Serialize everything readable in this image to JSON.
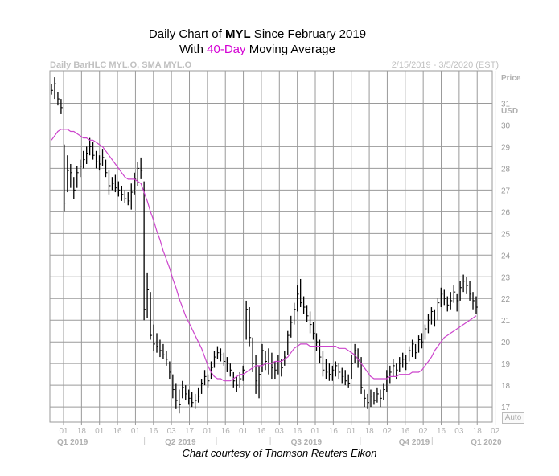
{
  "title": {
    "line1_prefix": "Daily Chart of ",
    "line1_ticker": "MYL",
    "line1_suffix": " Since February 2019",
    "line2_prefix": "With ",
    "line2_highlight": "40-Day",
    "line2_suffix": " Moving Average",
    "highlight_color": "#d400d4"
  },
  "header": {
    "left": "Daily BarHLC MYL.O, SMA MYL.O",
    "right": "2/15/2019 - 3/5/2020 (EST)"
  },
  "axis": {
    "price_label": "Price",
    "currency_label": "USD",
    "auto_label": "Auto"
  },
  "credit": "Chart courtesy of Thomson Reuters Eikon",
  "colors": {
    "grid": "#9a9a9a",
    "bars": "#000000",
    "sma": "#cc44cc",
    "axis_text": "#b0b0b0"
  },
  "chart_data": {
    "type": "line",
    "ylim": [
      16.3,
      32.5
    ],
    "yticks": [
      17,
      18,
      19,
      20,
      21,
      22,
      23,
      24,
      25,
      26,
      27,
      28,
      29,
      30,
      31
    ],
    "x_tick_labels": [
      "01",
      "18",
      "01",
      "16",
      "01",
      "16",
      "03",
      "17",
      "01",
      "16",
      "01",
      "16",
      "03",
      "16",
      "01",
      "16",
      "01",
      "18",
      "02",
      "16",
      "02",
      "16",
      "03",
      "18",
      "02"
    ],
    "quarter_labels": [
      "Q1 2019",
      "Q2 2019",
      "Q3 2019",
      "Q4 2019",
      "Q1 2020"
    ],
    "series": [
      {
        "name": "MYL.O",
        "style": "bar_hlc",
        "values": [
          [
            31.9,
            31.4,
            31.6
          ],
          [
            32.2,
            31.2,
            31.9
          ],
          [
            31.5,
            30.9,
            31.2
          ],
          [
            31.2,
            30.5,
            30.8
          ],
          [
            29.1,
            26.0,
            26.4
          ],
          [
            28.6,
            26.9,
            27.9
          ],
          [
            28.2,
            27.1,
            27.8
          ],
          [
            27.6,
            26.6,
            27.0
          ],
          [
            28.1,
            27.1,
            27.8
          ],
          [
            28.4,
            27.6,
            28.1
          ],
          [
            28.8,
            28.0,
            28.4
          ],
          [
            29.0,
            28.2,
            28.7
          ],
          [
            29.4,
            28.6,
            29.0
          ],
          [
            29.2,
            28.4,
            28.6
          ],
          [
            28.8,
            28.0,
            28.3
          ],
          [
            28.6,
            27.9,
            28.2
          ],
          [
            28.9,
            28.1,
            28.5
          ],
          [
            28.4,
            27.6,
            27.8
          ],
          [
            27.9,
            26.8,
            27.2
          ],
          [
            27.6,
            27.0,
            27.3
          ],
          [
            27.7,
            26.9,
            27.1
          ],
          [
            27.4,
            26.7,
            27.0
          ],
          [
            27.2,
            26.5,
            26.8
          ],
          [
            27.0,
            26.4,
            26.6
          ],
          [
            26.9,
            26.3,
            26.5
          ],
          [
            27.3,
            26.1,
            26.9
          ],
          [
            27.8,
            26.8,
            27.5
          ],
          [
            28.3,
            27.2,
            28.0
          ],
          [
            28.5,
            27.5,
            27.9
          ],
          [
            27.4,
            21.0,
            21.5
          ],
          [
            23.2,
            21.1,
            22.4
          ],
          [
            22.3,
            20.1,
            20.3
          ],
          [
            20.8,
            19.6,
            19.9
          ],
          [
            20.4,
            19.5,
            19.8
          ],
          [
            20.1,
            19.3,
            19.6
          ],
          [
            19.9,
            19.2,
            19.4
          ],
          [
            19.6,
            18.9,
            19.2
          ],
          [
            19.1,
            18.3,
            18.6
          ],
          [
            18.5,
            17.4,
            17.8
          ],
          [
            18.1,
            16.9,
            17.3
          ],
          [
            17.8,
            16.7,
            17.1
          ],
          [
            18.2,
            17.4,
            17.9
          ],
          [
            18.0,
            17.3,
            17.6
          ],
          [
            17.8,
            17.1,
            17.4
          ],
          [
            17.7,
            17.0,
            17.2
          ],
          [
            17.6,
            16.9,
            17.3
          ],
          [
            17.9,
            17.2,
            17.5
          ],
          [
            18.3,
            17.6,
            18.1
          ],
          [
            18.7,
            18.0,
            18.4
          ],
          [
            18.5,
            17.9,
            18.2
          ],
          [
            19.1,
            18.3,
            18.8
          ],
          [
            19.6,
            18.8,
            19.3
          ],
          [
            19.8,
            19.2,
            19.5
          ],
          [
            19.7,
            19.1,
            19.4
          ],
          [
            19.5,
            18.9,
            19.1
          ],
          [
            19.3,
            18.6,
            19.0
          ],
          [
            19.0,
            18.4,
            18.7
          ],
          [
            18.6,
            17.9,
            18.2
          ],
          [
            18.4,
            17.7,
            18.0
          ],
          [
            18.6,
            17.9,
            18.3
          ],
          [
            18.9,
            18.2,
            18.7
          ],
          [
            21.9,
            20.1,
            21.5
          ],
          [
            21.6,
            19.8,
            20.2
          ],
          [
            20.2,
            18.6,
            19.0
          ],
          [
            19.4,
            17.6,
            18.2
          ],
          [
            18.9,
            17.4,
            18.5
          ],
          [
            19.9,
            18.6,
            19.6
          ],
          [
            19.6,
            18.7,
            19.1
          ],
          [
            19.7,
            18.5,
            19.0
          ],
          [
            19.5,
            18.3,
            18.8
          ],
          [
            19.1,
            18.3,
            18.7
          ],
          [
            19.4,
            18.5,
            19.1
          ],
          [
            19.2,
            18.4,
            18.8
          ],
          [
            19.6,
            18.9,
            19.3
          ],
          [
            20.5,
            19.4,
            20.3
          ],
          [
            21.2,
            20.2,
            20.9
          ],
          [
            21.8,
            20.8,
            21.5
          ],
          [
            22.6,
            21.4,
            22.2
          ],
          [
            22.9,
            21.6,
            21.8
          ],
          [
            22.1,
            21.3,
            21.6
          ],
          [
            21.7,
            20.9,
            21.2
          ],
          [
            21.4,
            20.4,
            20.8
          ],
          [
            20.9,
            20.1,
            20.4
          ],
          [
            20.4,
            19.6,
            20.0
          ],
          [
            20.1,
            19.0,
            19.3
          ],
          [
            19.6,
            18.4,
            18.7
          ],
          [
            19.2,
            18.3,
            18.6
          ],
          [
            19.0,
            18.2,
            18.5
          ],
          [
            18.9,
            18.2,
            18.7
          ],
          [
            19.1,
            18.4,
            18.9
          ],
          [
            19.0,
            18.3,
            18.6
          ],
          [
            18.8,
            18.1,
            18.4
          ],
          [
            18.7,
            18.0,
            18.2
          ],
          [
            18.5,
            17.9,
            18.1
          ],
          [
            19.4,
            18.3,
            19.0
          ],
          [
            19.9,
            19.0,
            19.6
          ],
          [
            19.7,
            18.8,
            19.2
          ],
          [
            19.3,
            17.6,
            17.9
          ],
          [
            17.8,
            17.0,
            17.4
          ],
          [
            17.6,
            16.9,
            17.2
          ],
          [
            17.8,
            17.0,
            17.5
          ],
          [
            17.7,
            17.1,
            17.3
          ],
          [
            17.9,
            17.2,
            17.6
          ],
          [
            17.8,
            17.0,
            17.4
          ],
          [
            18.1,
            17.3,
            17.8
          ],
          [
            18.7,
            17.7,
            18.4
          ],
          [
            18.9,
            18.1,
            18.6
          ],
          [
            19.2,
            18.4,
            18.9
          ],
          [
            19.0,
            18.3,
            18.7
          ],
          [
            19.3,
            18.6,
            19.0
          ],
          [
            19.5,
            18.8,
            19.2
          ],
          [
            19.4,
            18.7,
            19.0
          ],
          [
            19.8,
            19.1,
            19.6
          ],
          [
            20.1,
            19.3,
            19.9
          ],
          [
            19.9,
            19.2,
            19.5
          ],
          [
            20.3,
            19.5,
            20.1
          ],
          [
            20.4,
            19.7,
            20.0
          ],
          [
            20.8,
            20.1,
            20.6
          ],
          [
            21.3,
            20.4,
            21.0
          ],
          [
            21.6,
            20.8,
            21.4
          ],
          [
            21.5,
            20.7,
            21.1
          ],
          [
            22.0,
            21.0,
            21.8
          ],
          [
            22.5,
            21.6,
            22.2
          ],
          [
            22.4,
            21.7,
            22.0
          ],
          [
            22.1,
            21.4,
            21.7
          ],
          [
            22.3,
            21.5,
            21.9
          ],
          [
            22.6,
            21.8,
            22.3
          ],
          [
            22.2,
            21.4,
            21.9
          ],
          [
            22.8,
            21.9,
            22.5
          ],
          [
            23.1,
            22.3,
            22.8
          ],
          [
            23.0,
            22.2,
            22.6
          ],
          [
            22.8,
            21.9,
            22.2
          ],
          [
            22.3,
            21.5,
            21.9
          ],
          [
            22.1,
            21.3,
            21.6
          ]
        ]
      },
      {
        "name": "SMA MYL.O",
        "values": [
          29.3,
          29.5,
          29.7,
          29.8,
          29.8,
          29.8,
          29.7,
          29.7,
          29.6,
          29.5,
          29.4,
          29.4,
          29.3,
          29.3,
          29.2,
          29.1,
          29.0,
          28.8,
          28.6,
          28.4,
          28.2,
          28.0,
          27.8,
          27.6,
          27.5,
          27.5,
          27.5,
          27.4,
          27.3,
          26.9,
          26.5,
          26.0,
          25.6,
          25.1,
          24.7,
          24.2,
          23.8,
          23.4,
          22.9,
          22.5,
          22.0,
          21.6,
          21.2,
          20.9,
          20.6,
          20.3,
          20.0,
          19.7,
          19.3,
          18.9,
          18.6,
          18.4,
          18.3,
          18.3,
          18.2,
          18.2,
          18.2,
          18.3,
          18.4,
          18.5,
          18.5,
          18.6,
          18.7,
          18.8,
          18.9,
          18.9,
          18.9,
          19.0,
          19.0,
          19.0,
          19.1,
          19.1,
          19.1,
          19.2,
          19.3,
          19.5,
          19.7,
          19.8,
          19.9,
          19.9,
          19.9,
          19.8,
          19.8,
          19.8,
          19.8,
          19.8,
          19.8,
          19.8,
          19.8,
          19.8,
          19.7,
          19.7,
          19.7,
          19.6,
          19.5,
          19.4,
          19.2,
          19.0,
          18.8,
          18.6,
          18.4,
          18.3,
          18.3,
          18.3,
          18.3,
          18.3,
          18.4,
          18.4,
          18.4,
          18.5,
          18.5,
          18.5,
          18.5,
          18.6,
          18.6,
          18.6,
          18.7,
          18.9,
          19.1,
          19.3,
          19.6,
          19.8,
          20.0,
          20.2,
          20.3,
          20.4,
          20.5,
          20.6,
          20.7,
          20.8,
          20.9,
          21.0,
          21.1,
          21.2
        ]
      }
    ]
  }
}
